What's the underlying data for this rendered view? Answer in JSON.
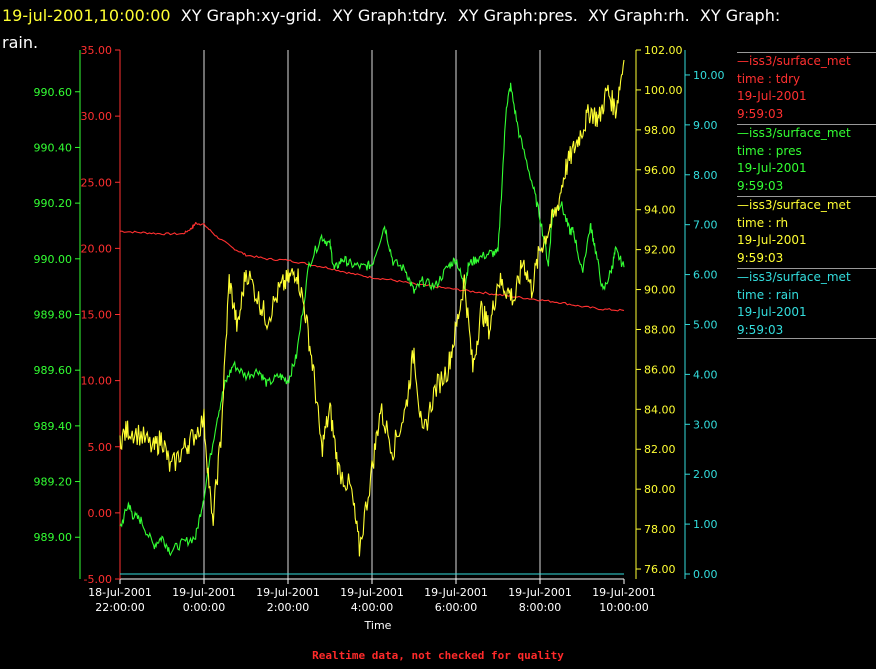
{
  "header": {
    "timestamp": "19-jul-2001,10:00:00",
    "graphs_line": "  XY Graph:xy-grid.  XY Graph:tdry.  XY Graph:pres.  XY Graph:rh.  XY Graph:",
    "graphs_line2": "rain."
  },
  "footer": "Realtime data, not checked for quality",
  "legend": [
    {
      "source": "—iss3/surface_met",
      "field": "time : tdry",
      "date": "19-Jul-2001",
      "time": "9:59:03",
      "color": "#ff3030"
    },
    {
      "source": "—iss3/surface_met",
      "field": "time : pres",
      "date": "19-Jul-2001",
      "time": "9:59:03",
      "color": "#33ff33"
    },
    {
      "source": "—iss3/surface_met",
      "field": "time : rh",
      "date": "19-Jul-2001",
      "time": "9:59:03",
      "color": "#ffff33"
    },
    {
      "source": "—iss3/surface_met",
      "field": "time : rain",
      "date": "19-Jul-2001",
      "time": "9:59:03",
      "color": "#33dddd"
    }
  ],
  "chart_data": {
    "type": "line",
    "xlabel": "Time",
    "x_ticks": [
      {
        "l1": "18-Jul-2001",
        "l2": "22:00:00"
      },
      {
        "l1": "19-Jul-2001",
        "l2": "0:00:00"
      },
      {
        "l1": "19-Jul-2001",
        "l2": "2:00:00"
      },
      {
        "l1": "19-Jul-2001",
        "l2": "4:00:00"
      },
      {
        "l1": "19-Jul-2001",
        "l2": "6:00:00"
      },
      {
        "l1": "19-Jul-2001",
        "l2": "8:00:00"
      },
      {
        "l1": "19-Jul-2001",
        "l2": "10:00:00"
      }
    ],
    "x_range_hours": [
      -2,
      10
    ],
    "grid": "vertical",
    "axes": [
      {
        "name": "tdry",
        "color": "#ff3030",
        "range": [
          -5,
          35
        ],
        "ticks": [
          "-5.00",
          "0.00",
          "5.00",
          "10.00",
          "15.00",
          "20.00",
          "25.00",
          "30.00",
          "35.00"
        ]
      },
      {
        "name": "pres",
        "color": "#33ff33",
        "range": [
          988.85,
          990.75
        ],
        "ticks": [
          "989.00",
          "989.20",
          "989.40",
          "989.60",
          "989.80",
          "990.00",
          "990.20",
          "990.40",
          "990.60"
        ]
      },
      {
        "name": "rh",
        "color": "#ffff33",
        "range": [
          75.5,
          102
        ],
        "ticks": [
          "76.00",
          "78.00",
          "80.00",
          "82.00",
          "84.00",
          "86.00",
          "88.00",
          "90.00",
          "92.00",
          "94.00",
          "96.00",
          "98.00",
          "100.00",
          "102.00"
        ]
      },
      {
        "name": "rain",
        "color": "#33dddd",
        "range": [
          -0.1,
          10.5
        ],
        "ticks": [
          "0.00",
          "1.00",
          "2.00",
          "3.00",
          "4.00",
          "5.00",
          "6.00",
          "7.00",
          "8.00",
          "9.00",
          "10.00"
        ]
      }
    ],
    "series": [
      {
        "name": "tdry",
        "axis": 0,
        "x": [
          -2,
          -1.5,
          -1,
          -0.5,
          -0.3,
          -0.2,
          0,
          0.3,
          0.7,
          1,
          1.5,
          2,
          2.5,
          3,
          3.5,
          4,
          4.5,
          5,
          5.5,
          6,
          6.5,
          7,
          7.5,
          8,
          8.5,
          9,
          9.5,
          10
        ],
        "y": [
          21.3,
          21.2,
          21.1,
          21.1,
          21.5,
          21.9,
          21.8,
          20.9,
          20.0,
          19.5,
          19.2,
          19.1,
          18.8,
          18.5,
          18.1,
          17.8,
          17.6,
          17.3,
          17.1,
          16.9,
          16.7,
          16.5,
          16.3,
          16.1,
          15.9,
          15.6,
          15.4,
          15.3
        ]
      },
      {
        "name": "pres",
        "axis": 1,
        "x": [
          -2,
          -1.8,
          -1.7,
          -1.5,
          -1.2,
          -1,
          -0.8,
          -0.5,
          -0.2,
          0,
          0.3,
          0.5,
          0.7,
          1,
          1.3,
          1.5,
          1.8,
          2,
          2.2,
          2.5,
          2.8,
          3,
          3.1,
          3.3,
          3.5,
          3.8,
          4,
          4.3,
          4.5,
          4.8,
          5,
          5.2,
          5.5,
          5.8,
          6,
          6.2,
          6.3,
          6.5,
          6.8,
          7,
          7.2,
          7.3,
          7.5,
          7.8,
          8,
          8.2,
          8.3,
          8.5,
          8.7,
          8.8,
          9,
          9.2,
          9.3,
          9.5,
          9.7,
          9.8,
          10
        ],
        "y": [
          989.03,
          989.12,
          989.08,
          989.06,
          988.97,
          989.0,
          988.95,
          988.98,
          989.0,
          989.15,
          989.42,
          989.55,
          989.62,
          989.58,
          989.6,
          989.55,
          989.58,
          989.56,
          989.65,
          989.98,
          990.08,
          990.05,
          989.96,
          990.0,
          989.98,
          989.97,
          989.98,
          990.12,
          989.99,
          989.96,
          989.88,
          989.92,
          989.9,
          989.97,
          990.0,
          989.9,
          989.98,
          990.0,
          990.02,
          990.02,
          990.55,
          990.62,
          990.45,
          990.28,
          990.15,
          989.98,
          990.17,
          990.2,
          990.1,
          990.1,
          989.95,
          990.12,
          990.05,
          989.88,
          989.96,
          990.03,
          989.97
        ]
      },
      {
        "name": "rh",
        "axis": 2,
        "x": [
          -2,
          -1.8,
          -1.5,
          -1.2,
          -1,
          -0.8,
          -0.5,
          -0.3,
          0,
          0.2,
          0.4,
          0.6,
          0.8,
          1,
          1.3,
          1.5,
          1.8,
          2,
          2.2,
          2.4,
          2.6,
          2.8,
          3,
          3.2,
          3.5,
          3.7,
          4,
          4.2,
          4.5,
          4.8,
          5,
          5.2,
          5.5,
          5.8,
          6,
          6.2,
          6.4,
          6.6,
          6.8,
          7,
          7.2,
          7.4,
          7.6,
          7.8,
          8,
          8.2,
          8.4,
          8.6,
          8.8,
          9,
          9.2,
          9.4,
          9.6,
          9.8,
          10
        ],
        "y": [
          82.5,
          83.0,
          82.7,
          82.0,
          82.6,
          81.0,
          82.0,
          82.5,
          83.5,
          78.2,
          82.5,
          90.5,
          88.0,
          91.0,
          89.5,
          88.5,
          90.0,
          90.5,
          91.0,
          89.0,
          86.0,
          82.0,
          84.0,
          81.0,
          80.0,
          77.0,
          81.0,
          84.0,
          82.0,
          84.0,
          87.0,
          82.5,
          85.0,
          86.0,
          88.0,
          90.5,
          86.0,
          89.0,
          88.0,
          90.5,
          90.0,
          89.5,
          91.5,
          90.0,
          92.0,
          93.0,
          94.0,
          96.0,
          97.0,
          98.0,
          99.0,
          98.5,
          100.0,
          99.0,
          101.5
        ]
      },
      {
        "name": "rain",
        "axis": 3,
        "x": [
          -2,
          10
        ],
        "y": [
          0.0,
          0.0
        ]
      }
    ]
  }
}
